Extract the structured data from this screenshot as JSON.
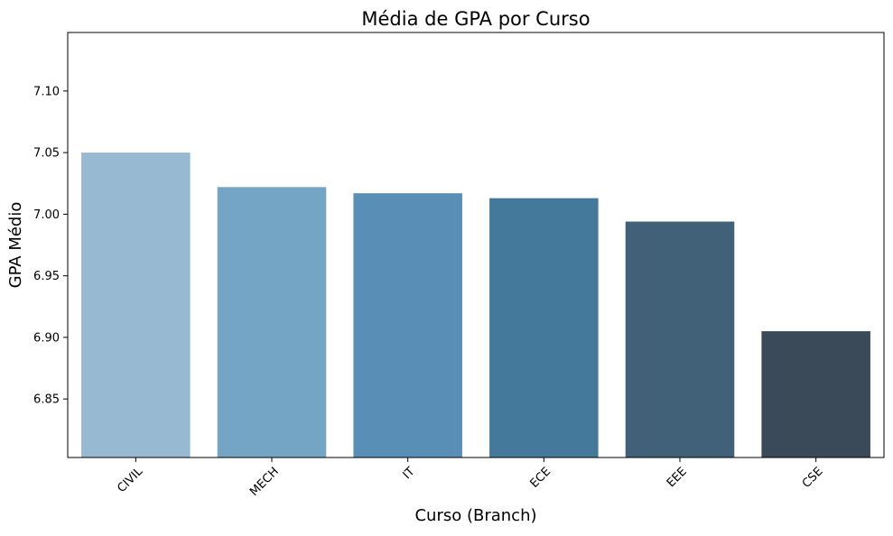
{
  "chart_data": {
    "type": "bar",
    "title": "Média de GPA por Curso",
    "xlabel": "Curso (Branch)",
    "ylabel": "GPA Médio",
    "categories": [
      "CIVIL",
      "MECH",
      "IT",
      "ECE",
      "EEE",
      "CSE"
    ],
    "values": [
      7.05,
      7.022,
      7.017,
      7.013,
      6.994,
      6.905
    ],
    "ylim": [
      6.8025,
      7.1475
    ],
    "yticks": [
      6.85,
      6.9,
      6.95,
      7.0,
      7.05,
      7.1
    ],
    "ytick_labels": [
      "6.85",
      "6.90",
      "6.95",
      "7.00",
      "7.05",
      "7.10"
    ],
    "colors": [
      "#97b9d1",
      "#74a5c5",
      "#598fb6",
      "#45799c",
      "#406178",
      "#3a4a58"
    ],
    "grid": false,
    "legend": "none"
  }
}
